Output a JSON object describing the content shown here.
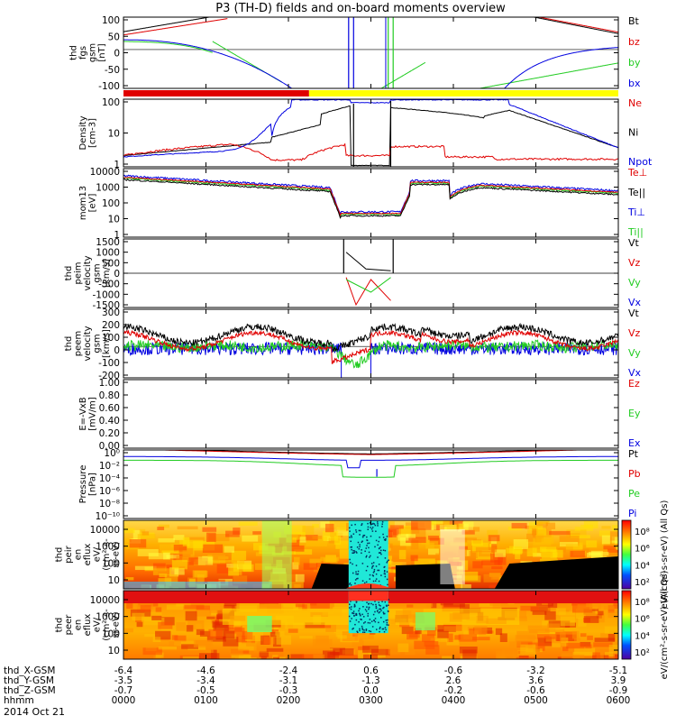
{
  "title": "P3 (TH-D) fields and on-board moments overview",
  "date": "2014 Oct 21",
  "colors": {
    "black": "#000000",
    "red": "#e00000",
    "green": "#22cc22",
    "blue": "#0000e0",
    "yellow": "#ffff00"
  },
  "chart_data": [
    {
      "type": "line",
      "panel": "fgs",
      "ylabel": [
        "thd",
        "fgs",
        "gsm",
        "[nT]"
      ],
      "yticks": [
        "100",
        "50",
        "0",
        "-50",
        "-100"
      ],
      "ylim": [
        -120,
        100
      ],
      "legend": [
        {
          "name": "Bt",
          "color": "#000000"
        },
        {
          "name": "bz",
          "color": "#e00000"
        },
        {
          "name": "by",
          "color": "#22cc22"
        },
        {
          "name": "bx",
          "color": "#0000e0"
        }
      ]
    },
    {
      "type": "bar",
      "panel": "mode-bar",
      "segments": [
        {
          "from": "0000",
          "to": "0215",
          "color": "#e00000"
        },
        {
          "from": "0215",
          "to": "0600",
          "color": "#ffff00"
        }
      ]
    },
    {
      "type": "line",
      "panel": "density",
      "ylabel": [
        "Density",
        "[cm-3]"
      ],
      "yticks": [
        "100",
        "10",
        "1"
      ],
      "ylim": [
        0.8,
        200
      ],
      "scale": "log",
      "legend": [
        {
          "name": "Ne",
          "color": "#e00000"
        },
        {
          "name": "Ni",
          "color": "#000000"
        },
        {
          "name": "Npot",
          "color": "#0000e0"
        }
      ]
    },
    {
      "type": "line",
      "panel": "temperature",
      "ylabel": [
        "mom13",
        "[eV]"
      ],
      "yticks": [
        "10000",
        "1000",
        "100",
        "10",
        "1"
      ],
      "ylim": [
        1,
        10000
      ],
      "scale": "log",
      "legend": [
        {
          "name": "Te⊥",
          "color": "#e00000"
        },
        {
          "name": "Te||",
          "color": "#000000"
        },
        {
          "name": "Ti⊥",
          "color": "#0000e0"
        },
        {
          "name": "Ti||",
          "color": "#22cc22"
        }
      ]
    },
    {
      "type": "line",
      "panel": "peim-velocity",
      "ylabel": [
        "thd",
        "peim",
        "velocity",
        "gsm",
        "[km/s]"
      ],
      "yticks": [
        "1500",
        "1000",
        "500",
        "0",
        "-500",
        "-1000",
        "-1500"
      ],
      "ylim": [
        -1500,
        1500
      ],
      "legend": [
        {
          "name": "Vt",
          "color": "#000000"
        },
        {
          "name": "Vz",
          "color": "#e00000"
        },
        {
          "name": "Vy",
          "color": "#22cc22"
        },
        {
          "name": "Vx",
          "color": "#0000e0"
        }
      ]
    },
    {
      "type": "line",
      "panel": "peem-velocity",
      "ylabel": [
        "thd",
        "peem",
        "velocity",
        "gsm",
        "[km/s]"
      ],
      "yticks": [
        "300",
        "200",
        "100",
        "0",
        "-100",
        "-200"
      ],
      "ylim": [
        -250,
        300
      ],
      "legend": [
        {
          "name": "Vt",
          "color": "#000000"
        },
        {
          "name": "Vz",
          "color": "#e00000"
        },
        {
          "name": "Vy",
          "color": "#22cc22"
        },
        {
          "name": "Vx",
          "color": "#0000e0"
        }
      ]
    },
    {
      "type": "line",
      "panel": "efield",
      "ylabel": [
        "E=-VxB",
        "[mV/m]"
      ],
      "yticks": [
        "1.00",
        "0.80",
        "0.60",
        "0.40",
        "0.20",
        "0.00"
      ],
      "ylim": [
        0,
        1
      ],
      "legend": [
        {
          "name": "Ez",
          "color": "#e00000"
        },
        {
          "name": "Ey",
          "color": "#22cc22"
        },
        {
          "name": "Ex",
          "color": "#0000e0"
        }
      ]
    },
    {
      "type": "line",
      "panel": "pressure",
      "ylabel": [
        "Pressure",
        "[nPa]"
      ],
      "yticks": [
        "10⁰",
        "10⁻²",
        "10⁻⁴",
        "10⁻⁶",
        "10⁻⁸",
        "10⁻¹⁰"
      ],
      "ylim": [
        1e-10,
        1
      ],
      "scale": "log",
      "legend": [
        {
          "name": "Pt",
          "color": "#000000"
        },
        {
          "name": "Pb",
          "color": "#e00000"
        },
        {
          "name": "Pe",
          "color": "#22cc22"
        },
        {
          "name": "Pi",
          "color": "#0000e0"
        }
      ]
    },
    {
      "type": "heatmap",
      "panel": "peir",
      "ylabel": [
        "thd",
        "peir",
        "en",
        "eflux",
        "eV/",
        "(cm²-s-",
        "sr-eV)"
      ],
      "yticks": [
        "10000",
        "1000",
        "100",
        "10"
      ],
      "colorbar_ticks": [
        "10⁸",
        "10⁶",
        "10⁴",
        "10²"
      ],
      "colorbar_label": "eV/(cm²-s-sr-eV) (All Qs)"
    },
    {
      "type": "heatmap",
      "panel": "peer",
      "ylabel": [
        "thd",
        "peer",
        "en",
        "eflux",
        "eV/",
        "(cm²-s-",
        "sr-eV)"
      ],
      "yticks": [
        "10000",
        "1000",
        "100",
        "10"
      ],
      "colorbar_ticks": [
        "10⁸",
        "10⁶",
        "10⁴",
        "10²"
      ],
      "colorbar_label": "eV/(cm²-s-sr-eV) (All Qs)"
    }
  ],
  "xaxis": {
    "row_labels": [
      "thd_X-GSM",
      "thd_Y-GSM",
      "thd_Z-GSM",
      "hhmm"
    ],
    "columns": [
      {
        "x": "-6.4",
        "y": "-3.5",
        "z": "-0.7",
        "t": "0000"
      },
      {
        "x": "-4.6",
        "y": "-3.4",
        "z": "-0.5",
        "t": "0100"
      },
      {
        "x": "-2.4",
        "y": "-3.1",
        "z": "-0.3",
        "t": "0200"
      },
      {
        "x": "0.6",
        "y": "-1.3",
        "z": "0.0",
        "t": "0300"
      },
      {
        "x": "-0.6",
        "y": "2.6",
        "z": "-0.2",
        "t": "0400"
      },
      {
        "x": "-3.2",
        "y": "3.6",
        "z": "-0.6",
        "t": "0500"
      },
      {
        "x": "-5.1",
        "y": "3.9",
        "z": "-0.9",
        "t": "0600"
      }
    ]
  }
}
